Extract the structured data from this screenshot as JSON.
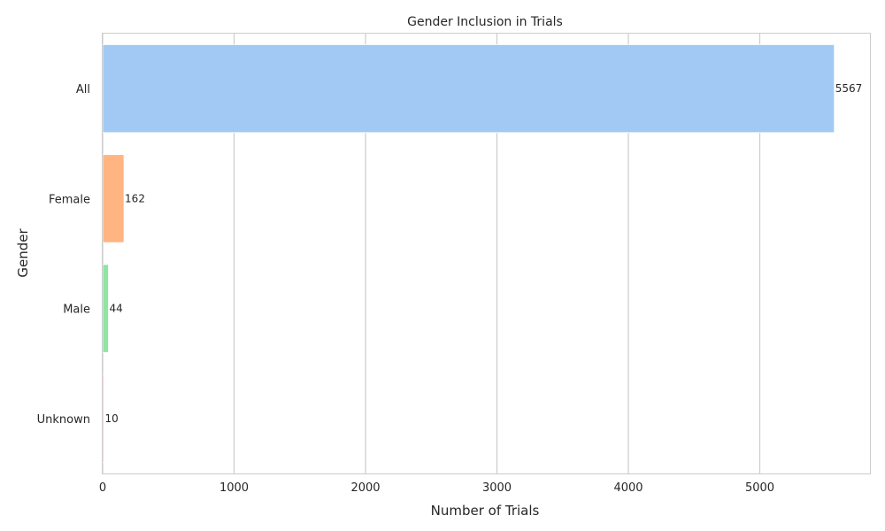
{
  "chart_data": {
    "type": "bar",
    "orientation": "horizontal",
    "title": "Gender Inclusion in Trials",
    "xlabel": "Number of Trials",
    "ylabel": "Gender",
    "categories": [
      "All",
      "Female",
      "Male",
      "Unknown"
    ],
    "values": [
      5567,
      162,
      44,
      10
    ],
    "data_labels": [
      "5567",
      "162",
      "44",
      "10"
    ],
    "xlim": [
      0,
      5845
    ],
    "xticks": [
      0,
      1000,
      2000,
      3000,
      4000,
      5000
    ],
    "xtick_labels": [
      "0",
      "1000",
      "2000",
      "3000",
      "4000",
      "5000"
    ],
    "grid": "vertical",
    "legend": "none",
    "colors": [
      "#a1c9f4",
      "#ffb482",
      "#8de5a1",
      "#ffb3c9"
    ]
  }
}
